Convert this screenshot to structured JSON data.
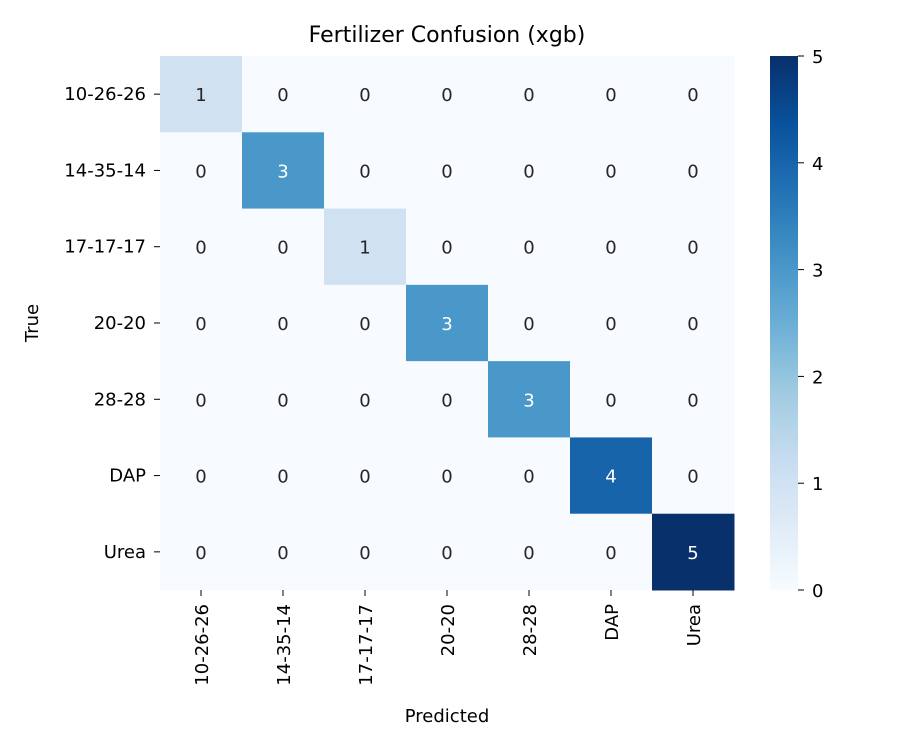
{
  "chart_data": {
    "type": "heatmap",
    "title": "Fertilizer Confusion (xgb)",
    "xlabel": "Predicted",
    "ylabel": "True",
    "x_categories": [
      "10-26-26",
      "14-35-14",
      "17-17-17",
      "20-20",
      "28-28",
      "DAP",
      "Urea"
    ],
    "y_categories": [
      "10-26-26",
      "14-35-14",
      "17-17-17",
      "20-20",
      "28-28",
      "DAP",
      "Urea"
    ],
    "values": [
      [
        1,
        0,
        0,
        0,
        0,
        0,
        0
      ],
      [
        0,
        3,
        0,
        0,
        0,
        0,
        0
      ],
      [
        0,
        0,
        1,
        0,
        0,
        0,
        0
      ],
      [
        0,
        0,
        0,
        3,
        0,
        0,
        0
      ],
      [
        0,
        0,
        0,
        0,
        3,
        0,
        0
      ],
      [
        0,
        0,
        0,
        0,
        0,
        4,
        0
      ],
      [
        0,
        0,
        0,
        0,
        0,
        0,
        5
      ]
    ],
    "colorbar": {
      "min": 0,
      "max": 5,
      "ticks": [
        "0",
        "1",
        "2",
        "3",
        "4",
        "5"
      ],
      "colormap": "Blues"
    },
    "colors": {
      "low": "#f7fbff",
      "high": "#08306b"
    }
  }
}
